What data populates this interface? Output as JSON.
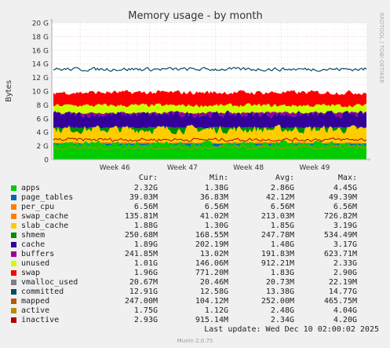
{
  "chart_data": {
    "type": "area",
    "title": "Memory usage - by month",
    "ylabel": "Bytes",
    "ylim": [
      0,
      20
    ],
    "y_ticks": [
      0,
      2,
      4,
      6,
      8,
      10,
      12,
      14,
      16,
      18,
      20
    ],
    "y_tick_labels": [
      "0",
      "2 G",
      "4 G",
      "6 G",
      "8 G",
      "10 G",
      "12 G",
      "14 G",
      "16 G",
      "18 G",
      "20 G"
    ],
    "x_tick_labels": [
      "Week 46",
      "Week 47",
      "Week 48",
      "Week 49"
    ],
    "grid": true,
    "watermark": "RRDTOOL / TOBI OETIKER",
    "stack_approx_tops_gb": {
      "apps": 2.3,
      "page_tables": 2.34,
      "per_cpu": 2.35,
      "swap_cache": 2.49,
      "slab_cache": 4.4,
      "shmem": 4.65,
      "cache": 6.6,
      "buffers": 6.85,
      "unused": 7.9,
      "swap": 9.8
    },
    "lines_approx_gb": {
      "committed": 13.2,
      "active": 1.7,
      "inactive": 2.9
    },
    "columns": {
      "cur": "Cur:",
      "min": "Min:",
      "avg": "Avg:",
      "max": "Max:"
    },
    "series": [
      {
        "name": "apps",
        "color": "#00cc00",
        "cur": "2.32G",
        "min": "1.38G",
        "avg": "2.86G",
        "max": "4.45G"
      },
      {
        "name": "page_tables",
        "color": "#0066b3",
        "cur": "39.03M",
        "min": "36.83M",
        "avg": "42.12M",
        "max": "49.39M"
      },
      {
        "name": "per_cpu",
        "color": "#ff8000",
        "cur": "6.56M",
        "min": "6.56M",
        "avg": "6.56M",
        "max": "6.56M"
      },
      {
        "name": "swap_cache",
        "color": "#ff8000",
        "cur": "135.81M",
        "min": "41.02M",
        "avg": "213.03M",
        "max": "726.82M"
      },
      {
        "name": "slab_cache",
        "color": "#ffcc00",
        "cur": "1.88G",
        "min": "1.30G",
        "avg": "1.85G",
        "max": "3.19G"
      },
      {
        "name": "shmem",
        "color": "#008f00",
        "cur": "250.68M",
        "min": "168.55M",
        "avg": "247.78M",
        "max": "534.49M"
      },
      {
        "name": "cache",
        "color": "#330099",
        "cur": "1.89G",
        "min": "202.19M",
        "avg": "1.48G",
        "max": "3.17G"
      },
      {
        "name": "buffers",
        "color": "#990099",
        "cur": "241.85M",
        "min": "13.02M",
        "avg": "191.83M",
        "max": "623.71M"
      },
      {
        "name": "unused",
        "color": "#ccff00",
        "cur": "1.01G",
        "min": "146.06M",
        "avg": "912.21M",
        "max": "2.33G"
      },
      {
        "name": "swap",
        "color": "#ff0000",
        "cur": "1.96G",
        "min": "771.20M",
        "avg": "1.83G",
        "max": "2.90G"
      },
      {
        "name": "vmalloc_used",
        "color": "#808080",
        "cur": "20.67M",
        "min": "20.46M",
        "avg": "20.73M",
        "max": "22.19M"
      },
      {
        "name": "committed",
        "color": "#004d66",
        "cur": "12.91G",
        "min": "12.58G",
        "avg": "13.38G",
        "max": "14.77G"
      },
      {
        "name": "mapped",
        "color": "#b35a00",
        "cur": "247.00M",
        "min": "104.12M",
        "avg": "252.00M",
        "max": "465.75M"
      },
      {
        "name": "active",
        "color": "#b38f00",
        "cur": "1.75G",
        "min": "1.12G",
        "avg": "2.48G",
        "max": "4.04G"
      },
      {
        "name": "inactive",
        "color": "#b30000",
        "cur": "2.93G",
        "min": "915.14M",
        "avg": "2.34G",
        "max": "4.20G"
      }
    ]
  },
  "last_update": "Last update: Wed Dec 10 02:00:02 2025",
  "footer": "Munin 2.0.75"
}
